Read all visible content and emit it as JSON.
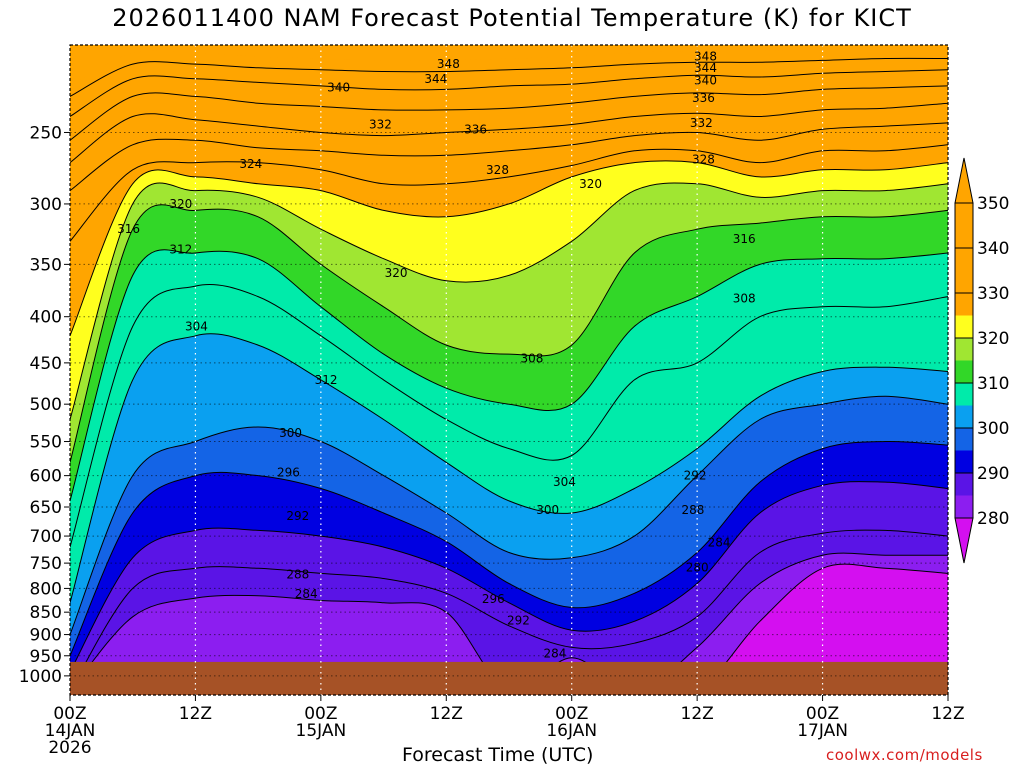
{
  "chart_data": {
    "type": "heatmap",
    "title": "2026011400 NAM Forecast Potential Temperature (K) for KICT",
    "xlabel": "Forecast Time (UTC)",
    "ylabel": "",
    "credit": "coolwx.com/models",
    "x_ticks": [
      {
        "hour": 0,
        "label": "00Z",
        "sub1": "14JAN",
        "sub2": "2026"
      },
      {
        "hour": 12,
        "label": "12Z",
        "sub1": "",
        "sub2": ""
      },
      {
        "hour": 24,
        "label": "00Z",
        "sub1": "15JAN",
        "sub2": ""
      },
      {
        "hour": 36,
        "label": "12Z",
        "sub1": "",
        "sub2": ""
      },
      {
        "hour": 48,
        "label": "00Z",
        "sub1": "16JAN",
        "sub2": ""
      },
      {
        "hour": 60,
        "label": "12Z",
        "sub1": "",
        "sub2": ""
      },
      {
        "hour": 72,
        "label": "00Z",
        "sub1": "17JAN",
        "sub2": ""
      },
      {
        "hour": 84,
        "label": "12Z",
        "sub1": "",
        "sub2": ""
      }
    ],
    "x_range_hours": [
      0,
      84
    ],
    "y_ticks_hpa": [
      250,
      300,
      350,
      400,
      450,
      500,
      550,
      600,
      650,
      700,
      750,
      800,
      850,
      900,
      950,
      1000
    ],
    "y_range_hpa": [
      200,
      1050
    ],
    "y_scale": "log-pressure",
    "grid": true,
    "ground_level_hpa": 965,
    "colorbar": {
      "levels": [
        280,
        290,
        300,
        310,
        320,
        330,
        340,
        350
      ],
      "labels": [
        "280",
        "290",
        "300",
        "310",
        "320",
        "330",
        "340",
        "350"
      ],
      "colors": [
        "#d40ff0",
        "#8c1ef0",
        "#5a14e6",
        "#0000e1",
        "#1464e6",
        "#0aa0f0",
        "#00ebaa",
        "#32d728",
        "#a0e632",
        "#ffff1e",
        "#ffa500"
      ],
      "placement": "right"
    },
    "colors": {
      "ground": "#a65226",
      "credit": "#d81e1e"
    },
    "time_hours": [
      0,
      6,
      12,
      18,
      24,
      30,
      36,
      42,
      48,
      54,
      60,
      66,
      72,
      78,
      84
    ],
    "isentrope_pressures_hpa": {
      "280": [
        null,
        null,
        null,
        null,
        null,
        null,
        null,
        null,
        null,
        null,
        null,
        870,
        760,
        760,
        770
      ],
      "284": [
        null,
        860,
        820,
        815,
        825,
        830,
        850,
        null,
        955,
        null,
        930,
        790,
        735,
        735,
        735
      ],
      "288": [
        null,
        800,
        760,
        760,
        770,
        780,
        810,
        880,
        930,
        920,
        860,
        730,
        695,
        690,
        700
      ],
      "292": [
        990,
        740,
        690,
        690,
        700,
        720,
        760,
        830,
        890,
        870,
        790,
        660,
        615,
        610,
        620
      ],
      "296": [
        950,
        660,
        600,
        600,
        620,
        660,
        710,
        790,
        840,
        810,
        730,
        610,
        560,
        550,
        555
      ],
      "300": [
        900,
        600,
        550,
        530,
        550,
        600,
        660,
        730,
        740,
        700,
        600,
        520,
        500,
        490,
        500
      ],
      "304": [
        830,
        470,
        420,
        430,
        470,
        520,
        580,
        640,
        660,
        620,
        560,
        490,
        460,
        455,
        460
      ],
      "308": [
        720,
        410,
        370,
        380,
        420,
        470,
        520,
        560,
        570,
        470,
        450,
        400,
        390,
        390,
        380
      ],
      "312": [
        640,
        360,
        340,
        345,
        390,
        440,
        480,
        500,
        500,
        410,
        380,
        350,
        345,
        345,
        340
      ],
      "316": [
        580,
        320,
        305,
        310,
        350,
        390,
        430,
        440,
        430,
        340,
        320,
        315,
        310,
        310,
        305
      ],
      "320": [
        520,
        300,
        290,
        295,
        320,
        345,
        365,
        360,
        330,
        290,
        285,
        295,
        290,
        290,
        285
      ],
      "324": [
        420,
        285,
        280,
        285,
        290,
        305,
        310,
        300,
        280,
        270,
        270,
        280,
        275,
        275,
        270
      ],
      "328": [
        330,
        275,
        270,
        270,
        275,
        285,
        285,
        280,
        272,
        262,
        262,
        270,
        262,
        262,
        258
      ],
      "332": [
        290,
        258,
        255,
        260,
        262,
        265,
        265,
        262,
        258,
        252,
        250,
        255,
        248,
        246,
        244
      ],
      "336": [
        270,
        240,
        242,
        246,
        250,
        252,
        250,
        248,
        245,
        240,
        238,
        240,
        236,
        235,
        232
      ],
      "340": [
        255,
        228,
        228,
        232,
        234,
        236,
        236,
        235,
        232,
        228,
        226,
        227,
        224,
        223,
        222
      ],
      "344": [
        240,
        218,
        218,
        220,
        222,
        224,
        224,
        222,
        221,
        218,
        216,
        217,
        215,
        214,
        213
      ],
      "348": [
        228,
        210,
        210,
        212,
        213,
        214,
        214,
        213,
        212,
        210,
        209,
        209,
        208,
        207,
        207
      ]
    },
    "contour_labels": [
      {
        "text": "348",
        "hour": 36.2,
        "hpa": 210
      },
      {
        "text": "344",
        "hour": 35.0,
        "hpa": 218
      },
      {
        "text": "340",
        "hour": 25.7,
        "hpa": 223
      },
      {
        "text": "332",
        "hour": 29.7,
        "hpa": 245
      },
      {
        "text": "336",
        "hour": 38.8,
        "hpa": 248
      },
      {
        "text": "328",
        "hour": 40.9,
        "hpa": 275
      },
      {
        "text": "324",
        "hour": 17.3,
        "hpa": 271
      },
      {
        "text": "320",
        "hour": 10.6,
        "hpa": 300
      },
      {
        "text": "320",
        "hour": 49.8,
        "hpa": 285
      },
      {
        "text": "316",
        "hour": 5.6,
        "hpa": 320
      },
      {
        "text": "312",
        "hour": 10.6,
        "hpa": 337
      },
      {
        "text": "320",
        "hour": 31.2,
        "hpa": 358
      },
      {
        "text": "304",
        "hour": 12.1,
        "hpa": 410
      },
      {
        "text": "312",
        "hour": 24.5,
        "hpa": 470
      },
      {
        "text": "308",
        "hour": 44.2,
        "hpa": 445
      },
      {
        "text": "300",
        "hour": 21.1,
        "hpa": 538
      },
      {
        "text": "296",
        "hour": 20.9,
        "hpa": 595
      },
      {
        "text": "292",
        "hour": 21.8,
        "hpa": 665
      },
      {
        "text": "304",
        "hour": 47.3,
        "hpa": 610
      },
      {
        "text": "300",
        "hour": 45.7,
        "hpa": 655
      },
      {
        "text": "288",
        "hour": 21.8,
        "hpa": 772
      },
      {
        "text": "284",
        "hour": 22.6,
        "hpa": 812
      },
      {
        "text": "296",
        "hour": 40.5,
        "hpa": 822
      },
      {
        "text": "292",
        "hour": 42.9,
        "hpa": 868
      },
      {
        "text": "284",
        "hour": 46.4,
        "hpa": 945
      },
      {
        "text": "292",
        "hour": 59.8,
        "hpa": 600
      },
      {
        "text": "288",
        "hour": 59.6,
        "hpa": 655
      },
      {
        "text": "284",
        "hour": 62.1,
        "hpa": 712
      },
      {
        "text": "280",
        "hour": 60.0,
        "hpa": 758
      },
      {
        "text": "308",
        "hour": 64.5,
        "hpa": 382
      },
      {
        "text": "316",
        "hour": 64.5,
        "hpa": 328
      },
      {
        "text": "328",
        "hour": 60.6,
        "hpa": 268
      },
      {
        "text": "332",
        "hour": 60.4,
        "hpa": 244
      },
      {
        "text": "336",
        "hour": 60.6,
        "hpa": 229
      },
      {
        "text": "340",
        "hour": 60.8,
        "hpa": 219
      },
      {
        "text": "344",
        "hour": 60.8,
        "hpa": 212
      },
      {
        "text": "348",
        "hour": 60.8,
        "hpa": 206
      }
    ]
  }
}
